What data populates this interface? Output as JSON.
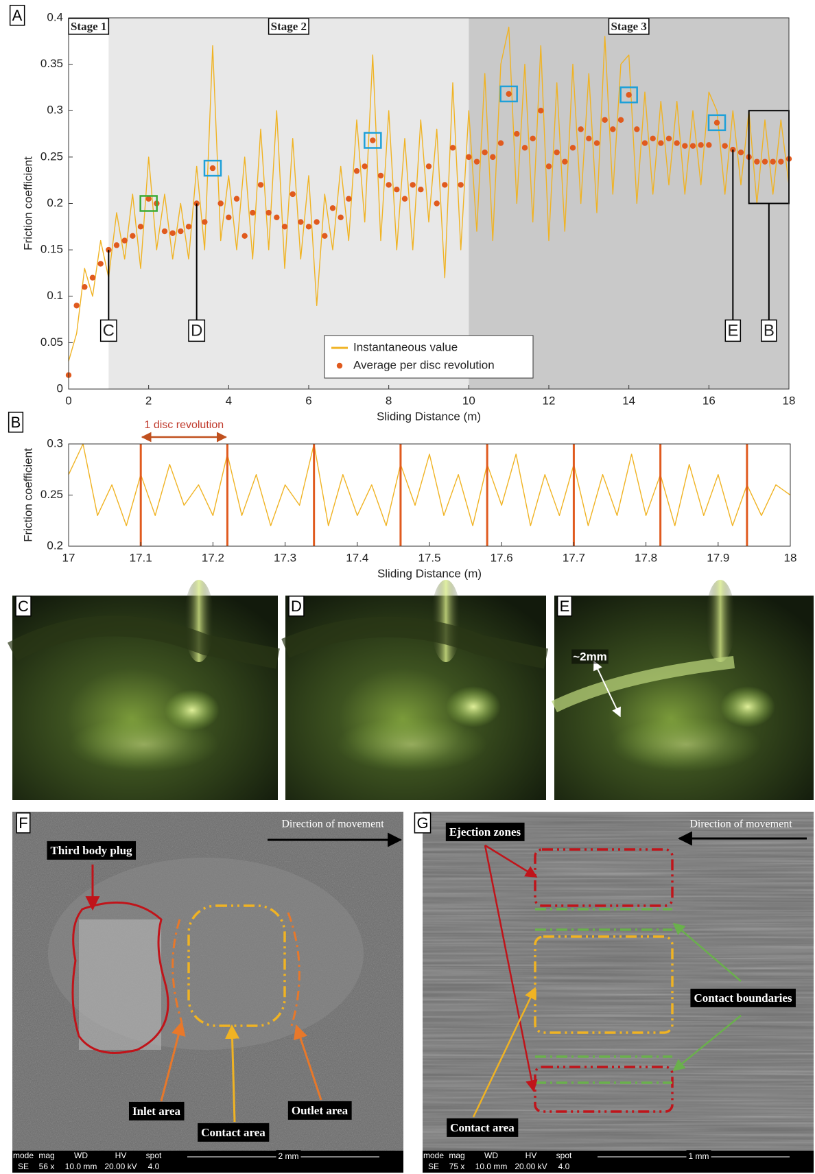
{
  "chart_data": [
    {
      "type": "line",
      "panel_label": "A",
      "xlabel": "Sliding Distance (m)",
      "ylabel": "Friction coefficient",
      "x": [
        0,
        0.2,
        0.4,
        0.6,
        0.8,
        1,
        1.2,
        1.4,
        1.6,
        1.8,
        2,
        2.2,
        2.4,
        2.6,
        2.8,
        3,
        3.2,
        3.4,
        3.6,
        3.8,
        4,
        4.2,
        4.4,
        4.6,
        4.8,
        5,
        5.2,
        5.4,
        5.6,
        5.8,
        6,
        6.2,
        6.4,
        6.6,
        6.8,
        7,
        7.2,
        7.4,
        7.6,
        7.8,
        8,
        8.2,
        8.4,
        8.6,
        8.8,
        9,
        9.2,
        9.4,
        9.6,
        9.8,
        10,
        10.2,
        10.4,
        10.6,
        10.8,
        11,
        11.2,
        11.4,
        11.6,
        11.8,
        12,
        12.2,
        12.4,
        12.6,
        12.8,
        13,
        13.2,
        13.4,
        13.6,
        13.8,
        14,
        14.2,
        14.4,
        14.6,
        14.8,
        15,
        15.2,
        15.4,
        15.6,
        15.8,
        16,
        16.2,
        16.4,
        16.6,
        16.8,
        17,
        17.2,
        17.4,
        17.6,
        17.8,
        18
      ],
      "series": [
        {
          "name": "Instantaneous value",
          "color": "#f0b323",
          "mode": "line",
          "values": [
            0.03,
            0.06,
            0.13,
            0.1,
            0.16,
            0.12,
            0.19,
            0.14,
            0.21,
            0.13,
            0.25,
            0.15,
            0.21,
            0.14,
            0.2,
            0.14,
            0.24,
            0.15,
            0.37,
            0.16,
            0.23,
            0.15,
            0.25,
            0.14,
            0.28,
            0.15,
            0.3,
            0.13,
            0.27,
            0.14,
            0.23,
            0.09,
            0.21,
            0.15,
            0.24,
            0.16,
            0.29,
            0.18,
            0.36,
            0.16,
            0.3,
            0.15,
            0.27,
            0.15,
            0.29,
            0.18,
            0.28,
            0.12,
            0.33,
            0.15,
            0.3,
            0.17,
            0.34,
            0.16,
            0.35,
            0.39,
            0.2,
            0.35,
            0.18,
            0.37,
            0.16,
            0.33,
            0.17,
            0.35,
            0.2,
            0.34,
            0.19,
            0.38,
            0.21,
            0.35,
            0.36,
            0.2,
            0.32,
            0.21,
            0.31,
            0.22,
            0.31,
            0.21,
            0.3,
            0.22,
            0.32,
            0.3,
            0.21,
            0.3,
            0.22,
            0.3,
            0.2,
            0.29,
            0.21,
            0.29,
            0.22
          ]
        },
        {
          "name": "Average per disc revolution",
          "color": "#e05a1e",
          "mode": "markers",
          "values": [
            0.015,
            0.09,
            0.11,
            0.12,
            0.135,
            0.15,
            0.155,
            0.16,
            0.165,
            0.175,
            0.205,
            0.2,
            0.17,
            0.168,
            0.17,
            0.175,
            0.2,
            0.18,
            0.238,
            0.2,
            0.185,
            0.205,
            0.165,
            0.19,
            0.22,
            0.19,
            0.185,
            0.175,
            0.21,
            0.18,
            0.175,
            0.18,
            0.165,
            0.195,
            0.185,
            0.205,
            0.235,
            0.24,
            0.268,
            0.23,
            0.22,
            0.215,
            0.205,
            0.22,
            0.215,
            0.24,
            0.2,
            0.22,
            0.26,
            0.22,
            0.25,
            0.245,
            0.255,
            0.25,
            0.265,
            0.318,
            0.275,
            0.26,
            0.27,
            0.3,
            0.24,
            0.255,
            0.245,
            0.26,
            0.28,
            0.27,
            0.265,
            0.29,
            0.28,
            0.29,
            0.317,
            0.28,
            0.265,
            0.27,
            0.265,
            0.27,
            0.265,
            0.262,
            0.262,
            0.263,
            0.263,
            0.287,
            0.262,
            0.258,
            0.255,
            0.25,
            0.245,
            0.245,
            0.245,
            0.245,
            0.248
          ]
        }
      ],
      "xlim": [
        0,
        18
      ],
      "ylim": [
        0,
        0.4
      ],
      "xticks": [
        0,
        2,
        4,
        6,
        8,
        10,
        12,
        14,
        16,
        18
      ],
      "yticks": [
        0,
        0.05,
        0.1,
        0.15,
        0.2,
        0.25,
        0.3,
        0.35,
        0.4
      ],
      "legend": "lower center",
      "regions": [
        {
          "label": "Stage 1",
          "from": 0,
          "to": 1,
          "color": "#ffffff"
        },
        {
          "label": "Stage 2",
          "from": 1,
          "to": 10,
          "color": "#e8e8e8"
        },
        {
          "label": "Stage 3",
          "from": 10,
          "to": 18,
          "color": "#c9c9c9"
        }
      ],
      "highlights": [
        {
          "x": 2,
          "y": 0.2,
          "color": "#3aaa35"
        },
        {
          "x": 3.6,
          "y": 0.238,
          "color": "#1ea0d8"
        },
        {
          "x": 7.6,
          "y": 0.268,
          "color": "#1ea0d8"
        },
        {
          "x": 11,
          "y": 0.318,
          "color": "#1ea0d8"
        },
        {
          "x": 14,
          "y": 0.317,
          "color": "#1ea0d8"
        },
        {
          "x": 16.2,
          "y": 0.287,
          "color": "#1ea0d8"
        }
      ],
      "annotations": [
        {
          "label": "C",
          "x": 1,
          "y": 0.15
        },
        {
          "label": "D",
          "x": 3.2,
          "y": 0.2
        },
        {
          "label": "E",
          "x": 16.6,
          "y": 0.258
        },
        {
          "label": "B",
          "x": 17.5,
          "y": 0.2,
          "box": {
            "x": [
              17,
              18
            ],
            "y": [
              0.2,
              0.3
            ]
          }
        }
      ]
    },
    {
      "type": "line",
      "panel_label": "B",
      "xlabel": "Sliding Distance (m)",
      "ylabel": "Friction coefficient",
      "x": [
        17,
        17.02,
        17.04,
        17.06,
        17.08,
        17.1,
        17.12,
        17.14,
        17.16,
        17.18,
        17.2,
        17.22,
        17.24,
        17.26,
        17.28,
        17.3,
        17.32,
        17.34,
        17.36,
        17.38,
        17.4,
        17.42,
        17.44,
        17.46,
        17.48,
        17.5,
        17.52,
        17.54,
        17.56,
        17.58,
        17.6,
        17.62,
        17.64,
        17.66,
        17.68,
        17.7,
        17.72,
        17.74,
        17.76,
        17.78,
        17.8,
        17.82,
        17.84,
        17.86,
        17.88,
        17.9,
        17.92,
        17.94,
        17.96,
        17.98,
        18
      ],
      "series": [
        {
          "color": "#f0b323",
          "mode": "line",
          "values": [
            0.27,
            0.3,
            0.23,
            0.26,
            0.22,
            0.27,
            0.23,
            0.28,
            0.24,
            0.26,
            0.23,
            0.29,
            0.23,
            0.27,
            0.22,
            0.26,
            0.24,
            0.3,
            0.22,
            0.27,
            0.23,
            0.26,
            0.22,
            0.28,
            0.24,
            0.29,
            0.23,
            0.27,
            0.22,
            0.28,
            0.24,
            0.29,
            0.22,
            0.27,
            0.23,
            0.28,
            0.22,
            0.27,
            0.23,
            0.29,
            0.23,
            0.27,
            0.22,
            0.28,
            0.23,
            0.27,
            0.22,
            0.26,
            0.23,
            0.26,
            0.25
          ]
        }
      ],
      "xlim": [
        17,
        18
      ],
      "ylim": [
        0.2,
        0.3
      ],
      "xticks": [
        17,
        17.1,
        17.2,
        17.3,
        17.4,
        17.5,
        17.6,
        17.7,
        17.8,
        17.9,
        18
      ],
      "yticks": [
        0.2,
        0.25,
        0.3
      ],
      "revolution_lines": {
        "color": "#e05a1e",
        "x": [
          17.1,
          17.22,
          17.34,
          17.46,
          17.58,
          17.7,
          17.82,
          17.94
        ]
      },
      "span_annotation": {
        "label": "1 disc revolution",
        "from": 17.1,
        "to": 17.22,
        "color": "#c0392b"
      }
    }
  ],
  "photo_panels": [
    {
      "label": "C"
    },
    {
      "label": "D"
    },
    {
      "label": "E",
      "annotation": "~2mm"
    }
  ],
  "sem_panels": [
    {
      "label": "F",
      "direction": "Direction of movement",
      "callouts": [
        "Third body plug",
        "Inlet area",
        "Contact area",
        "Outlet area"
      ],
      "info": {
        "headers": [
          "mode",
          "mag",
          "WD",
          "HV",
          "spot"
        ],
        "row": [
          "SE",
          "56 x",
          "10.0 mm",
          "20.00 kV",
          "4.0"
        ],
        "scale": "2 mm"
      }
    },
    {
      "label": "G",
      "direction": "Direction of movement",
      "callouts": [
        "Ejection zones",
        "Contact boundaries",
        "Contact area"
      ],
      "info": {
        "headers": [
          "mode",
          "mag",
          "WD",
          "HV",
          "spot"
        ],
        "row": [
          "SE",
          "75 x",
          "10.0 mm",
          "20.00 kV",
          "4.0"
        ],
        "scale": "1 mm"
      }
    }
  ]
}
